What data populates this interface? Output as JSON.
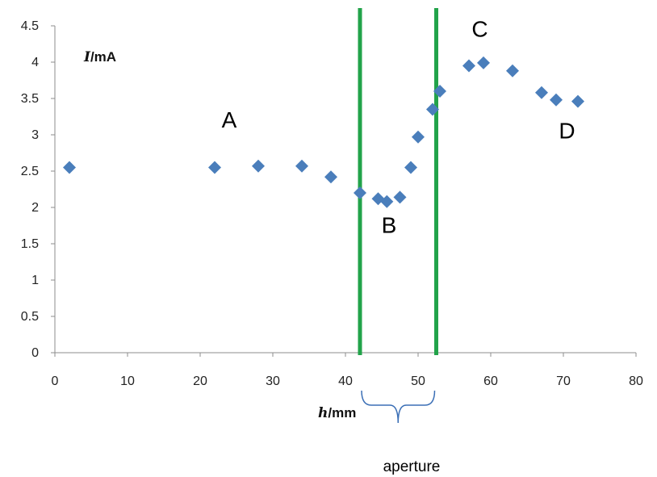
{
  "chart_data": {
    "type": "scatter",
    "xlim": [
      0,
      80
    ],
    "ylim": [
      0,
      4.5
    ],
    "x_ticks": [
      "0",
      "10",
      "20",
      "30",
      "40",
      "50",
      "60",
      "70",
      "80"
    ],
    "y_ticks": [
      "0",
      "0.5",
      "1",
      "1.5",
      "2",
      "2.5",
      "3",
      "3.5",
      "4",
      "4.5"
    ],
    "x_ticks_values": [
      0,
      10,
      20,
      30,
      40,
      50,
      60,
      70,
      80
    ],
    "y_ticks_values": [
      0,
      0.5,
      1,
      1.5,
      2,
      2.5,
      3,
      3.5,
      4,
      4.5
    ],
    "xlabel_var": "h",
    "xlabel_unit": "/mm",
    "ylabel_var": "I",
    "ylabel_unit": "/mA",
    "grid": false,
    "marker_color": "#4a7ebb",
    "points": [
      {
        "x": 2,
        "y": 2.55
      },
      {
        "x": 22,
        "y": 2.55
      },
      {
        "x": 28,
        "y": 2.57
      },
      {
        "x": 34,
        "y": 2.57
      },
      {
        "x": 38,
        "y": 2.42
      },
      {
        "x": 42,
        "y": 2.2
      },
      {
        "x": 44.5,
        "y": 2.12
      },
      {
        "x": 45.7,
        "y": 2.08
      },
      {
        "x": 47.5,
        "y": 2.14
      },
      {
        "x": 49,
        "y": 2.55
      },
      {
        "x": 50,
        "y": 2.97
      },
      {
        "x": 52,
        "y": 3.35
      },
      {
        "x": 53,
        "y": 3.6
      },
      {
        "x": 57,
        "y": 3.95
      },
      {
        "x": 59,
        "y": 3.99
      },
      {
        "x": 63,
        "y": 3.88
      },
      {
        "x": 67,
        "y": 3.58
      },
      {
        "x": 69,
        "y": 3.48
      },
      {
        "x": 72,
        "y": 3.46
      }
    ],
    "vertical_lines": [
      {
        "x": 42,
        "color": "#22a34a"
      },
      {
        "x": 52.5,
        "color": "#22a34a"
      }
    ],
    "region_labels": [
      {
        "text": "A",
        "x": 24,
        "y": 3.1
      },
      {
        "text": "B",
        "x": 46,
        "y": 1.65
      },
      {
        "text": "C",
        "x": 58.5,
        "y": 4.35
      },
      {
        "text": "D",
        "x": 70.5,
        "y": 2.95
      }
    ],
    "brace": {
      "from": 42,
      "to": 52.5,
      "label": "aperture"
    }
  }
}
